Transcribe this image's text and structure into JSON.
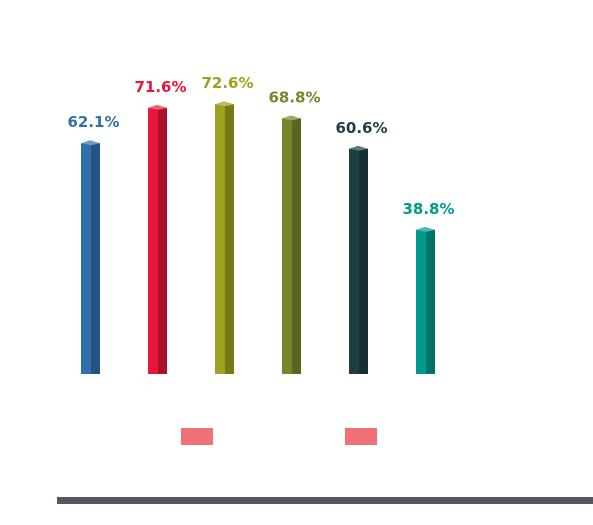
{
  "chart_data": {
    "type": "bar",
    "categories": [
      "",
      "",
      "",
      "",
      "",
      ""
    ],
    "values": [
      62.1,
      71.6,
      72.6,
      68.8,
      60.6,
      38.8
    ],
    "labels": [
      "62.1%",
      "71.6%",
      "72.6%",
      "68.8%",
      "60.6%",
      "38.8%"
    ],
    "colors": [
      "#2f6fab",
      "#e8163a",
      "#9ea11f",
      "#76862a",
      "#1c3f45",
      "#00998c"
    ],
    "title": "",
    "xlabel": "",
    "ylabel": "",
    "ylim": [
      0,
      100
    ],
    "grid": false,
    "legend": "none",
    "decor_colors": {
      "pink_marker": "#f07078",
      "bottom_rule": "#545463"
    }
  }
}
